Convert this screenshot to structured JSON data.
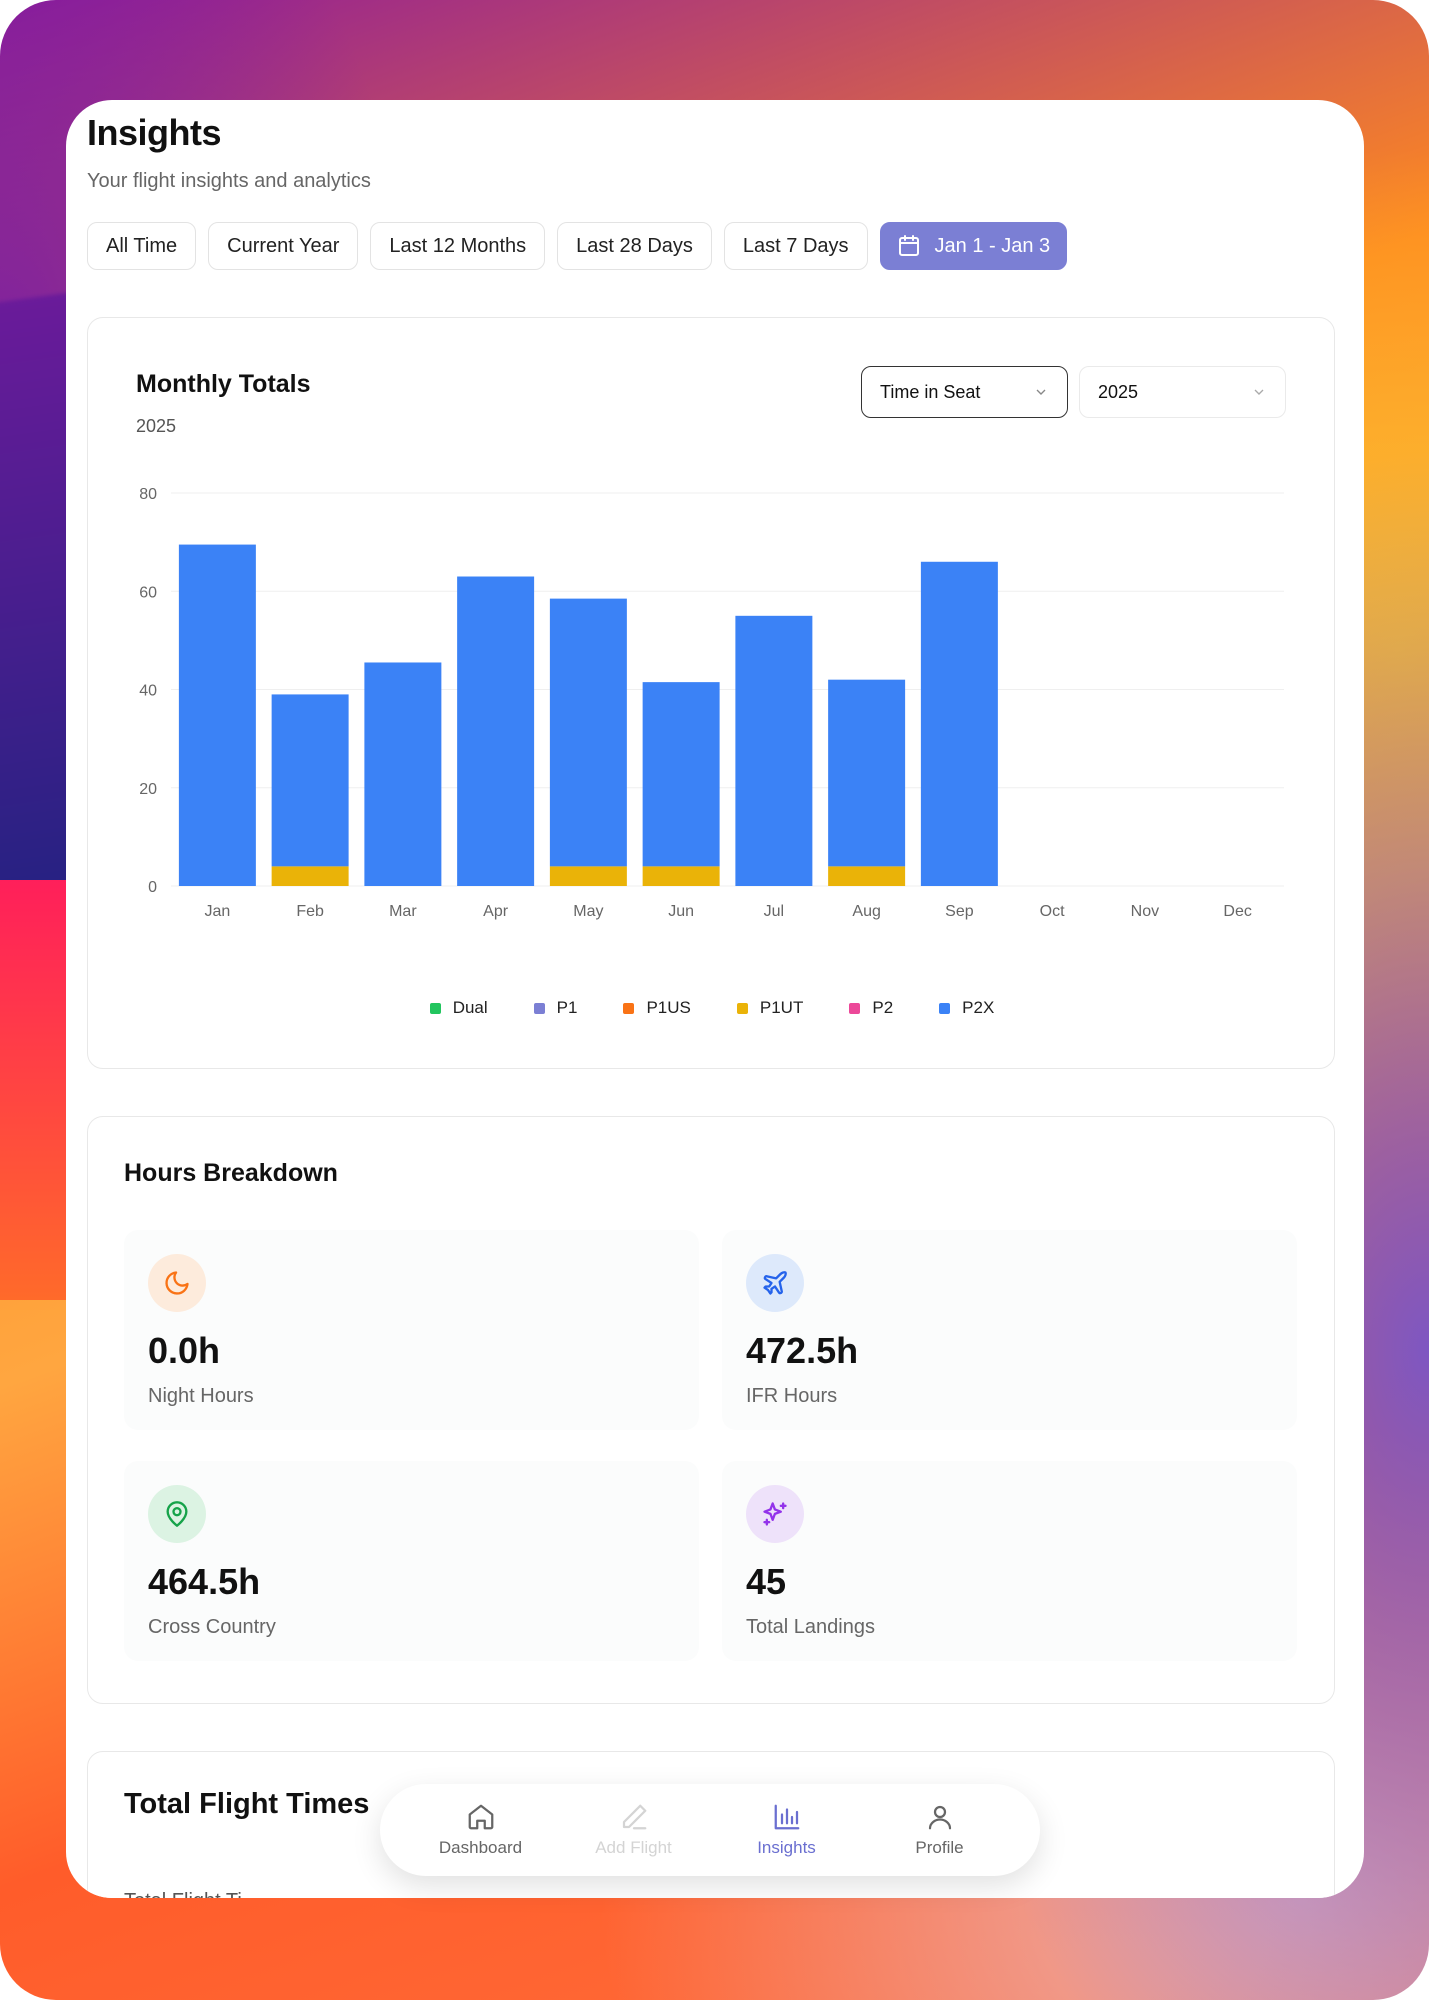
{
  "header": {
    "title": "Insights",
    "subtitle": "Your flight insights and analytics"
  },
  "filters": [
    {
      "label": "All Time"
    },
    {
      "label": "Current Year"
    },
    {
      "label": "Last 12 Months"
    },
    {
      "label": "Last 28 Days"
    },
    {
      "label": "Last 7 Days"
    },
    {
      "label": "Jan 1 - Jan 3",
      "active": true,
      "icon": "calendar-icon"
    }
  ],
  "monthly": {
    "title": "Monthly Totals",
    "subtitle": "2025",
    "metric_select": "Time in Seat",
    "year_select": "2025"
  },
  "chart_data": {
    "type": "bar",
    "stacked": true,
    "categories": [
      "Jan",
      "Feb",
      "Mar",
      "Apr",
      "May",
      "Jun",
      "Jul",
      "Aug",
      "Sep",
      "Oct",
      "Nov",
      "Dec"
    ],
    "series": [
      {
        "name": "Dual",
        "color": "#22c55e",
        "values": [
          0,
          0,
          0,
          0,
          0,
          0,
          0,
          0,
          0,
          0,
          0,
          0
        ]
      },
      {
        "name": "P1",
        "color": "#7b7fd4",
        "values": [
          0,
          0,
          0,
          0,
          0,
          0,
          0,
          0,
          0,
          0,
          0,
          0
        ]
      },
      {
        "name": "P1US",
        "color": "#f97316",
        "values": [
          0,
          0,
          0,
          0,
          0,
          0,
          0,
          0,
          0,
          0,
          0,
          0
        ]
      },
      {
        "name": "P1UT",
        "color": "#eab308",
        "values": [
          0,
          4,
          0,
          0,
          4,
          4,
          0,
          4,
          0,
          0,
          0,
          0
        ]
      },
      {
        "name": "P2",
        "color": "#ec4899",
        "values": [
          0,
          0,
          0,
          0,
          0,
          0,
          0,
          0,
          0,
          0,
          0,
          0
        ]
      },
      {
        "name": "P2X",
        "color": "#3b82f6",
        "values": [
          69.5,
          35,
          45.5,
          63,
          54.5,
          37.5,
          55,
          38,
          66,
          0,
          0,
          0
        ]
      }
    ],
    "yticks": [
      0,
      20,
      40,
      60,
      80
    ],
    "ylim": [
      0,
      80
    ],
    "grid": true,
    "legend": "bottom-center"
  },
  "hours": {
    "title": "Hours Breakdown",
    "stats": [
      {
        "value": "0.0h",
        "label": "Night Hours",
        "icon": "moon-icon",
        "color": "#f97316",
        "bg": "#fdebdc"
      },
      {
        "value": "472.5h",
        "label": "IFR Hours",
        "icon": "plane-icon",
        "color": "#2563eb",
        "bg": "#dde9fb"
      },
      {
        "value": "464.5h",
        "label": "Cross Country",
        "icon": "map-pin-icon",
        "color": "#16a34a",
        "bg": "#dcf3e3"
      },
      {
        "value": "45",
        "label": "Total Landings",
        "icon": "sparkles-icon",
        "color": "#9333ea",
        "bg": "#eee2fa"
      }
    ]
  },
  "total_flight": {
    "title": "Total Flight Times",
    "subtitle": "Total Flight Ti"
  },
  "nav": [
    {
      "label": "Dashboard",
      "icon": "home-icon"
    },
    {
      "label": "Add Flight",
      "icon": "pencil-icon",
      "disabled": true
    },
    {
      "label": "Insights",
      "icon": "bar-chart-icon",
      "active": true
    },
    {
      "label": "Profile",
      "icon": "user-icon"
    }
  ]
}
